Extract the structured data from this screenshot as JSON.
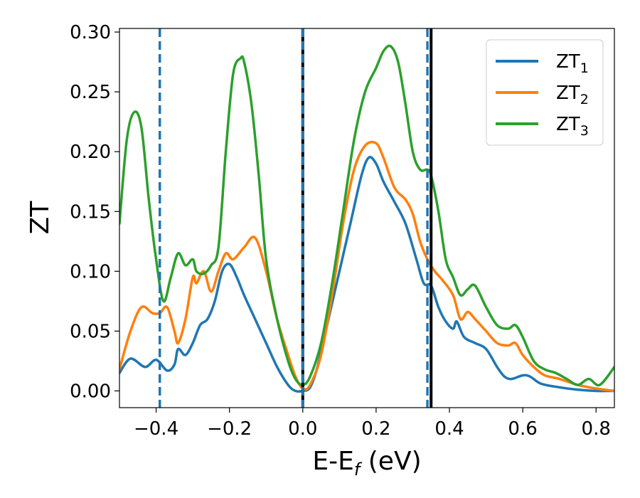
{
  "chart_data": {
    "type": "line",
    "xlabel": "E-E",
    "xlabel_sub": "f",
    "xlabel_unit": " (eV)",
    "ylabel": "ZT",
    "xlim": [
      -0.5,
      0.85
    ],
    "ylim": [
      -0.014,
      0.303
    ],
    "xticks": [
      -0.4,
      -0.2,
      0.0,
      0.2,
      0.4,
      0.6,
      0.8
    ],
    "xtick_labels": [
      "−0.4",
      "−0.2",
      "0.0",
      "0.2",
      "0.4",
      "0.6",
      "0.8"
    ],
    "yticks": [
      0.0,
      0.05,
      0.1,
      0.15,
      0.2,
      0.25,
      0.3
    ],
    "ytick_labels": [
      "0.00",
      "0.05",
      "0.10",
      "0.15",
      "0.20",
      "0.25",
      "0.30"
    ],
    "grid": false,
    "legend_position": "top-right",
    "vlines": [
      {
        "x": -0.39,
        "style": "dashed",
        "color": "#1f77b4"
      },
      {
        "x": 0.0,
        "style": "solid",
        "color": "#000000"
      },
      {
        "x": 0.0,
        "style": "dashed",
        "color": "#1f77b4"
      },
      {
        "x": 0.35,
        "style": "solid",
        "color": "#000000"
      },
      {
        "x": 0.34,
        "style": "dashed",
        "color": "#1f77b4"
      }
    ],
    "series": [
      {
        "name": "ZT",
        "name_sub": "1",
        "color": "#1f77b4",
        "x": [
          -0.5,
          -0.47,
          -0.43,
          -0.4,
          -0.37,
          -0.35,
          -0.34,
          -0.32,
          -0.3,
          -0.28,
          -0.26,
          -0.24,
          -0.22,
          -0.2,
          -0.18,
          -0.16,
          -0.13,
          -0.1,
          -0.07,
          -0.04,
          -0.02,
          0.0,
          0.02,
          0.04,
          0.07,
          0.1,
          0.13,
          0.16,
          0.18,
          0.2,
          0.22,
          0.25,
          0.28,
          0.31,
          0.33,
          0.35,
          0.37,
          0.39,
          0.41,
          0.42,
          0.44,
          0.47,
          0.5,
          0.53,
          0.55,
          0.57,
          0.6,
          0.62,
          0.65,
          0.7,
          0.75,
          0.8,
          0.85
        ],
        "y": [
          0.015,
          0.027,
          0.02,
          0.026,
          0.017,
          0.022,
          0.035,
          0.03,
          0.04,
          0.055,
          0.06,
          0.075,
          0.1,
          0.106,
          0.095,
          0.08,
          0.06,
          0.04,
          0.02,
          0.005,
          0.0,
          0.0,
          0.003,
          0.02,
          0.06,
          0.1,
          0.14,
          0.18,
          0.195,
          0.19,
          0.175,
          0.158,
          0.14,
          0.11,
          0.09,
          0.088,
          0.07,
          0.058,
          0.052,
          0.058,
          0.045,
          0.04,
          0.035,
          0.02,
          0.012,
          0.01,
          0.013,
          0.012,
          0.006,
          0.003,
          0.001,
          0.0,
          0.0
        ]
      },
      {
        "name": "ZT",
        "name_sub": "2",
        "color": "#ff7f0e",
        "x": [
          -0.5,
          -0.47,
          -0.44,
          -0.41,
          -0.39,
          -0.37,
          -0.35,
          -0.34,
          -0.32,
          -0.3,
          -0.29,
          -0.27,
          -0.25,
          -0.23,
          -0.21,
          -0.19,
          -0.16,
          -0.13,
          -0.1,
          -0.07,
          -0.04,
          -0.02,
          0.0,
          0.02,
          0.05,
          0.08,
          0.11,
          0.14,
          0.17,
          0.2,
          0.22,
          0.25,
          0.28,
          0.3,
          0.32,
          0.34,
          0.36,
          0.38,
          0.41,
          0.43,
          0.45,
          0.47,
          0.5,
          0.53,
          0.56,
          0.58,
          0.6,
          0.63,
          0.66,
          0.7,
          0.75,
          0.8,
          0.85
        ],
        "y": [
          0.018,
          0.05,
          0.07,
          0.065,
          0.065,
          0.07,
          0.05,
          0.04,
          0.06,
          0.095,
          0.09,
          0.1,
          0.083,
          0.1,
          0.115,
          0.11,
          0.12,
          0.128,
          0.1,
          0.06,
          0.03,
          0.012,
          0.002,
          0.005,
          0.03,
          0.08,
          0.14,
          0.185,
          0.205,
          0.207,
          0.195,
          0.17,
          0.16,
          0.148,
          0.125,
          0.11,
          0.1,
          0.093,
          0.08,
          0.06,
          0.066,
          0.06,
          0.05,
          0.04,
          0.038,
          0.04,
          0.03,
          0.02,
          0.013,
          0.01,
          0.005,
          0.002,
          0.0
        ]
      },
      {
        "name": "ZT",
        "name_sub": "3",
        "color": "#2ca02c",
        "x": [
          -0.5,
          -0.48,
          -0.46,
          -0.44,
          -0.42,
          -0.4,
          -0.38,
          -0.36,
          -0.34,
          -0.32,
          -0.3,
          -0.29,
          -0.27,
          -0.25,
          -0.23,
          -0.21,
          -0.19,
          -0.17,
          -0.16,
          -0.14,
          -0.12,
          -0.1,
          -0.07,
          -0.04,
          -0.02,
          0.0,
          0.02,
          0.05,
          0.08,
          0.11,
          0.14,
          0.17,
          0.2,
          0.22,
          0.24,
          0.26,
          0.28,
          0.3,
          0.32,
          0.34,
          0.35,
          0.37,
          0.39,
          0.41,
          0.43,
          0.45,
          0.47,
          0.5,
          0.53,
          0.56,
          0.58,
          0.6,
          0.63,
          0.66,
          0.69,
          0.72,
          0.75,
          0.78,
          0.81,
          0.85
        ],
        "y": [
          0.14,
          0.21,
          0.233,
          0.22,
          0.16,
          0.11,
          0.075,
          0.095,
          0.115,
          0.105,
          0.11,
          0.1,
          0.098,
          0.105,
          0.12,
          0.2,
          0.265,
          0.278,
          0.275,
          0.24,
          0.18,
          0.11,
          0.06,
          0.025,
          0.01,
          0.005,
          0.012,
          0.04,
          0.09,
          0.15,
          0.21,
          0.25,
          0.27,
          0.284,
          0.288,
          0.275,
          0.24,
          0.2,
          0.185,
          0.185,
          0.18,
          0.15,
          0.11,
          0.095,
          0.08,
          0.085,
          0.088,
          0.07,
          0.055,
          0.052,
          0.055,
          0.045,
          0.025,
          0.018,
          0.015,
          0.01,
          0.005,
          0.01,
          0.005,
          0.02
        ]
      }
    ]
  }
}
